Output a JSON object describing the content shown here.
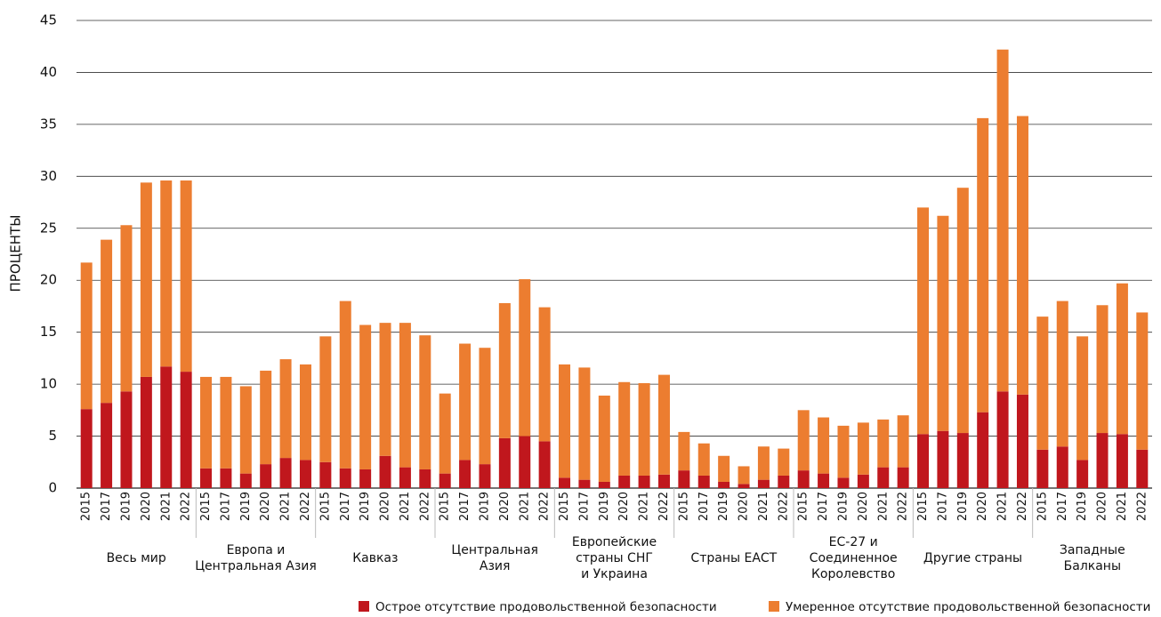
{
  "chart_data": {
    "type": "stacked_bar",
    "y_label": "ПРОЦЕНТЫ",
    "ylim": [
      0,
      45
    ],
    "yticks": [
      0,
      5,
      10,
      15,
      20,
      25,
      30,
      35,
      40,
      45
    ],
    "grid": true,
    "groups": [
      {
        "label": [
          "Весь мир"
        ],
        "categories": [
          "2015",
          "2017",
          "2019",
          "2020",
          "2021",
          "2022"
        ]
      },
      {
        "label": [
          "Европа и",
          "Центральная Азия"
        ],
        "categories": [
          "2015",
          "2017",
          "2019",
          "2020",
          "2021",
          "2022"
        ]
      },
      {
        "label": [
          "Кавказ"
        ],
        "categories": [
          "2015",
          "2017",
          "2019",
          "2020",
          "2021",
          "2022"
        ]
      },
      {
        "label": [
          "Центральная",
          "Азия"
        ],
        "categories": [
          "2015",
          "2017",
          "2019",
          "2020",
          "2021",
          "2022"
        ]
      },
      {
        "label": [
          "Европейские",
          "страны СНГ",
          "и Украина"
        ],
        "categories": [
          "2015",
          "2017",
          "2019",
          "2020",
          "2021",
          "2022"
        ]
      },
      {
        "label": [
          "Страны ЕАСТ"
        ],
        "categories": [
          "2015",
          "2017",
          "2019",
          "2020",
          "2021",
          "2022"
        ]
      },
      {
        "label": [
          "ЕС-27 и",
          "Соединенное",
          "Королевство"
        ],
        "categories": [
          "2015",
          "2017",
          "2019",
          "2020",
          "2021",
          "2022"
        ]
      },
      {
        "label": [
          "Другие страны"
        ],
        "categories": [
          "2015",
          "2017",
          "2019",
          "2020",
          "2021",
          "2022"
        ]
      },
      {
        "label": [
          "Западные",
          "Балканы"
        ],
        "categories": [
          "2015",
          "2017",
          "2019",
          "2020",
          "2021",
          "2022"
        ]
      }
    ],
    "series": [
      {
        "name": "Острое отсутствие продовольственной безопасности",
        "color": "#c0171d",
        "values": [
          7.6,
          8.2,
          9.3,
          10.7,
          11.7,
          11.2,
          1.9,
          1.9,
          1.4,
          2.3,
          2.9,
          2.7,
          2.5,
          1.9,
          1.8,
          3.1,
          2.0,
          1.8,
          1.4,
          2.7,
          2.3,
          4.8,
          5.0,
          4.5,
          1.0,
          0.8,
          0.6,
          1.2,
          1.2,
          1.3,
          1.7,
          1.2,
          0.6,
          0.4,
          0.8,
          1.2,
          1.7,
          1.4,
          1.0,
          1.3,
          2.0,
          2.0,
          5.2,
          5.5,
          5.3,
          7.3,
          9.3,
          9.0,
          3.7,
          4.0,
          2.7,
          5.3,
          5.2,
          3.7
        ]
      },
      {
        "name": "Умеренное отсутствие продовольственной безопасности",
        "color": "#ec7d30",
        "values": [
          14.1,
          15.7,
          16.0,
          18.7,
          17.9,
          18.4,
          8.8,
          8.8,
          8.4,
          9.0,
          9.5,
          9.2,
          12.1,
          16.1,
          13.9,
          12.8,
          13.9,
          12.9,
          7.7,
          11.2,
          11.2,
          13.0,
          15.1,
          12.9,
          10.9,
          10.8,
          8.3,
          9.0,
          8.9,
          9.6,
          3.7,
          3.1,
          2.5,
          1.7,
          3.2,
          2.6,
          5.8,
          5.4,
          5.0,
          5.0,
          4.6,
          5.0,
          21.8,
          20.7,
          23.6,
          28.3,
          32.9,
          26.8,
          12.8,
          14.0,
          11.9,
          12.3,
          14.5,
          13.2
        ]
      }
    ]
  }
}
